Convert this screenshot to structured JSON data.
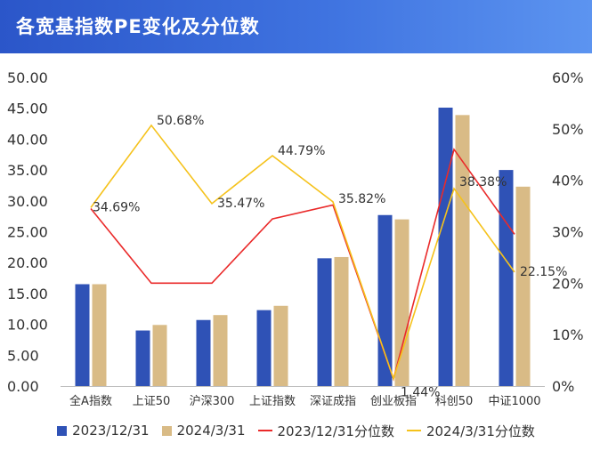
{
  "title": "各宽基指数PE变化及分位数",
  "chart_data": {
    "type": "bar",
    "categories": [
      "全A指数",
      "上证50",
      "沪深300",
      "上证指数",
      "深证成指",
      "创业板指",
      "科创50",
      "中证1000"
    ],
    "series": [
      {
        "name": "2023/12/31",
        "kind": "bar",
        "axis": "left",
        "color": "#2f52b6",
        "values": [
          16.5,
          9.0,
          10.7,
          12.3,
          20.7,
          27.7,
          45.1,
          35.0
        ]
      },
      {
        "name": "2024/3/31",
        "kind": "bar",
        "axis": "left",
        "color": "#d9bb86",
        "values": [
          16.5,
          9.9,
          11.5,
          13.0,
          20.9,
          27.0,
          43.9,
          32.3
        ]
      },
      {
        "name": "2023/12/31分位数",
        "kind": "line",
        "axis": "right",
        "color": "#ea2a2a",
        "values": [
          34.5,
          20.0,
          20.0,
          32.5,
          35.2,
          1.4,
          46.0,
          29.5
        ]
      },
      {
        "name": "2024/3/31分位数",
        "kind": "line",
        "axis": "right",
        "color": "#f5c21b",
        "values": [
          34.69,
          50.68,
          35.47,
          44.79,
          35.82,
          1.44,
          38.38,
          22.15
        ],
        "labels": [
          "34.69%",
          "50.68%",
          "35.47%",
          "44.79%",
          "35.82%",
          "1.44%",
          "38.38%",
          "22.15%"
        ]
      }
    ],
    "y_left": {
      "min": 0,
      "max": 50,
      "step": 5,
      "tick_labels": [
        "0.00",
        "5.00",
        "10.00",
        "15.00",
        "20.00",
        "25.00",
        "30.00",
        "35.00",
        "40.00",
        "45.00",
        "50.00"
      ]
    },
    "y_right": {
      "min": 0,
      "max": 60,
      "step": 10,
      "tick_labels": [
        "0%",
        "10%",
        "20%",
        "30%",
        "40%",
        "50%",
        "60%"
      ]
    },
    "grid": false,
    "legend_position": "bottom"
  }
}
